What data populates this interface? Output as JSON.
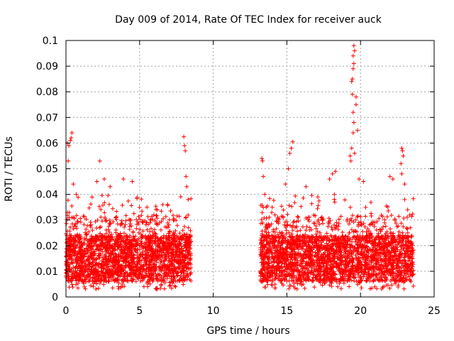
{
  "chart_data": {
    "type": "scatter",
    "title": "Day 009 of 2014, Rate Of TEC Index for receiver auck",
    "xlabel": "GPS time / hours",
    "ylabel": "ROTI / TECUs",
    "xlim": [
      0,
      25
    ],
    "ylim": [
      0,
      0.1
    ],
    "xticks": [
      0,
      5,
      10,
      15,
      20,
      25
    ],
    "xtick_labels": [
      "0",
      "5",
      "10",
      "15",
      "20",
      "25"
    ],
    "yticks": [
      0,
      0.01,
      0.02,
      0.03,
      0.04,
      0.05,
      0.06,
      0.07,
      0.08,
      0.09,
      0.1
    ],
    "ytick_labels": [
      "0",
      "0.01",
      "0.02",
      "0.03",
      "0.04",
      "0.05",
      "0.06",
      "0.07",
      "0.08",
      "0.09",
      "0.1"
    ],
    "grid": true,
    "marker": "+",
    "marker_color": "#ff0000",
    "series": [
      {
        "name": "ROTI",
        "segments": [
          {
            "x_start": 0.0,
            "x_end": 8.5
          },
          {
            "x_start": 13.2,
            "x_end": 23.6
          }
        ],
        "highlights": [
          {
            "x": 0.1,
            "y": 0.06
          },
          {
            "x": 0.2,
            "y": 0.059
          },
          {
            "x": 0.3,
            "y": 0.061
          },
          {
            "x": 0.4,
            "y": 0.064
          },
          {
            "x": 0.35,
            "y": 0.062
          },
          {
            "x": 0.15,
            "y": 0.053
          },
          {
            "x": 0.5,
            "y": 0.044
          },
          {
            "x": 0.7,
            "y": 0.04
          },
          {
            "x": 2.3,
            "y": 0.053
          },
          {
            "x": 2.1,
            "y": 0.045
          },
          {
            "x": 2.6,
            "y": 0.046
          },
          {
            "x": 3.0,
            "y": 0.043
          },
          {
            "x": 3.9,
            "y": 0.046
          },
          {
            "x": 4.5,
            "y": 0.045
          },
          {
            "x": 5.5,
            "y": 0.035
          },
          {
            "x": 6.2,
            "y": 0.034
          },
          {
            "x": 6.9,
            "y": 0.036
          },
          {
            "x": 8.0,
            "y": 0.0625
          },
          {
            "x": 8.05,
            "y": 0.059
          },
          {
            "x": 8.1,
            "y": 0.057
          },
          {
            "x": 8.15,
            "y": 0.047
          },
          {
            "x": 8.2,
            "y": 0.043
          },
          {
            "x": 8.3,
            "y": 0.038
          },
          {
            "x": 13.3,
            "y": 0.054
          },
          {
            "x": 13.35,
            "y": 0.053
          },
          {
            "x": 13.4,
            "y": 0.047
          },
          {
            "x": 13.5,
            "y": 0.04
          },
          {
            "x": 13.6,
            "y": 0.035
          },
          {
            "x": 15.4,
            "y": 0.0605
          },
          {
            "x": 15.3,
            "y": 0.058
          },
          {
            "x": 15.2,
            "y": 0.056
          },
          {
            "x": 15.1,
            "y": 0.05
          },
          {
            "x": 14.9,
            "y": 0.044
          },
          {
            "x": 16.3,
            "y": 0.043
          },
          {
            "x": 17.1,
            "y": 0.039
          },
          {
            "x": 17.9,
            "y": 0.046
          },
          {
            "x": 18.3,
            "y": 0.049
          },
          {
            "x": 18.1,
            "y": 0.048
          },
          {
            "x": 19.55,
            "y": 0.098
          },
          {
            "x": 19.6,
            "y": 0.096
          },
          {
            "x": 19.5,
            "y": 0.094
          },
          {
            "x": 19.55,
            "y": 0.091
          },
          {
            "x": 19.5,
            "y": 0.089
          },
          {
            "x": 19.45,
            "y": 0.085
          },
          {
            "x": 19.4,
            "y": 0.084
          },
          {
            "x": 19.45,
            "y": 0.079
          },
          {
            "x": 19.7,
            "y": 0.078
          },
          {
            "x": 19.7,
            "y": 0.075
          },
          {
            "x": 19.5,
            "y": 0.072
          },
          {
            "x": 19.55,
            "y": 0.068
          },
          {
            "x": 19.5,
            "y": 0.064
          },
          {
            "x": 19.8,
            "y": 0.065
          },
          {
            "x": 19.4,
            "y": 0.058
          },
          {
            "x": 19.3,
            "y": 0.055
          },
          {
            "x": 19.6,
            "y": 0.056
          },
          {
            "x": 19.35,
            "y": 0.053
          },
          {
            "x": 19.9,
            "y": 0.046
          },
          {
            "x": 20.2,
            "y": 0.045
          },
          {
            "x": 22.0,
            "y": 0.047
          },
          {
            "x": 22.2,
            "y": 0.046
          },
          {
            "x": 22.8,
            "y": 0.058
          },
          {
            "x": 22.85,
            "y": 0.057
          },
          {
            "x": 22.9,
            "y": 0.055
          },
          {
            "x": 22.75,
            "y": 0.052
          },
          {
            "x": 22.8,
            "y": 0.048
          },
          {
            "x": 23.0,
            "y": 0.044
          },
          {
            "x": 23.0,
            "y": 0.038
          },
          {
            "x": 23.2,
            "y": 0.034
          }
        ]
      }
    ]
  }
}
